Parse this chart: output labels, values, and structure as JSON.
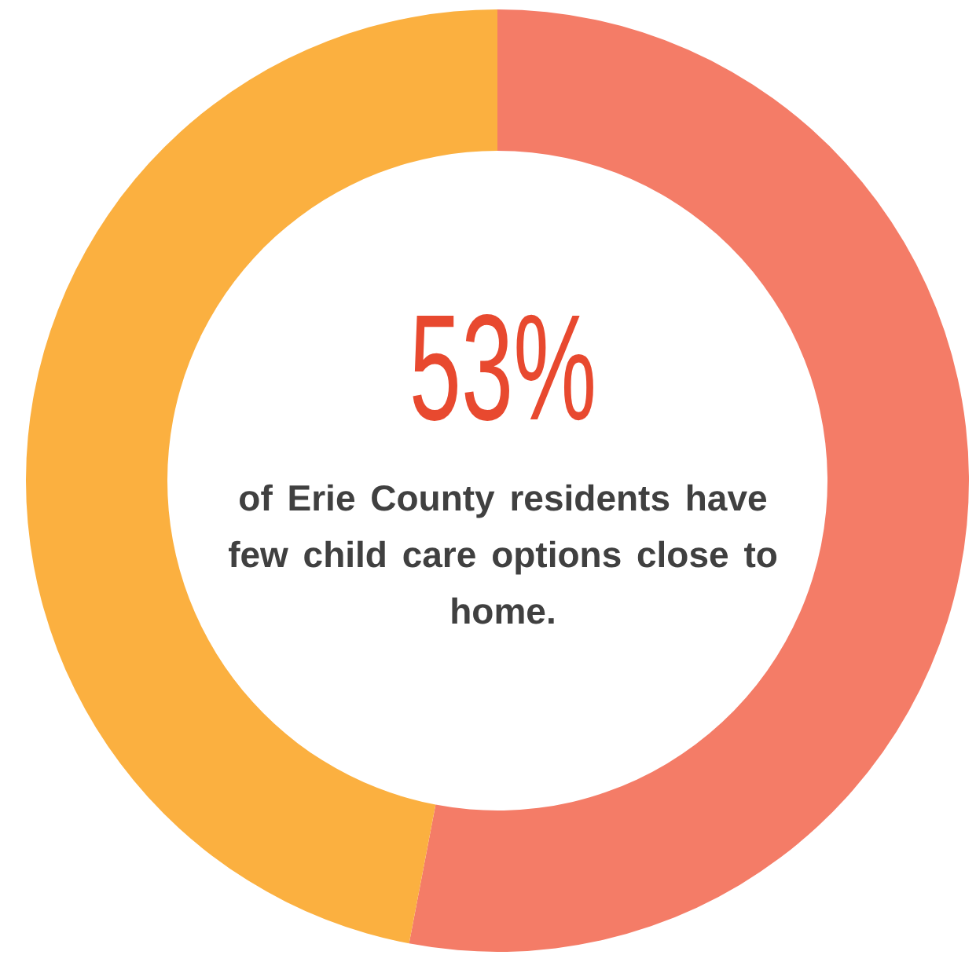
{
  "chart_data": {
    "type": "donut",
    "categories": [
      null,
      null
    ],
    "values": [
      53,
      47
    ],
    "colors": [
      "#f47c67",
      "#fbb040"
    ],
    "annotations": [
      "53%",
      "of Erie County residents have few child care options close to home."
    ]
  }
}
